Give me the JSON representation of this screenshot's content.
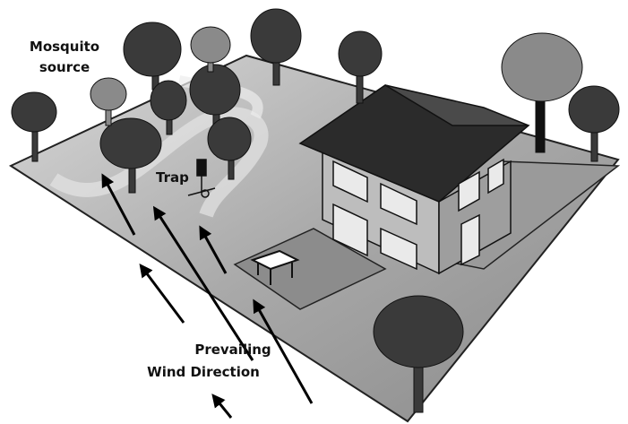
{
  "labels": {
    "mosquito_source": [
      "Mosquito",
      "source"
    ],
    "trap": "Trap",
    "wind_direction": [
      "Prevailing",
      "Wind Direction"
    ]
  }
}
